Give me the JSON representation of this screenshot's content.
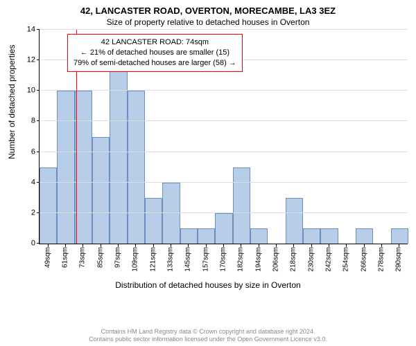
{
  "title_main": "42, LANCASTER ROAD, OVERTON, MORECAMBE, LA3 3EZ",
  "title_sub": "Size of property relative to detached houses in Overton",
  "y_axis_label": "Number of detached properties",
  "x_axis_label": "Distribution of detached houses by size in Overton",
  "footer_line1": "Contains HM Land Registry data © Crown copyright and database right 2024.",
  "footer_line2": "Contains public sector information licensed under the Open Government Licence v3.0.",
  "chart": {
    "type": "histogram",
    "ylim": [
      0,
      14
    ],
    "ytick_step": 2,
    "yticks": [
      0,
      2,
      4,
      6,
      8,
      10,
      12,
      14
    ],
    "grid_color": "#dddddd",
    "background_color": "#ffffff",
    "bar_fill": "#b7cde8",
    "bar_stroke": "#6a8fc0",
    "ref_line_color": "#ff0000",
    "info_border_color": "#ff0000",
    "label_fontsize": 12,
    "tick_fontsize": 11,
    "bin_width_sqm": 12,
    "x_start_sqm": 49,
    "x_tick_labels": [
      "49sqm",
      "61sqm",
      "73sqm",
      "85sqm",
      "97sqm",
      "109sqm",
      "121sqm",
      "133sqm",
      "145sqm",
      "157sqm",
      "170sqm",
      "182sqm",
      "194sqm",
      "206sqm",
      "218sqm",
      "230sqm",
      "242sqm",
      "254sqm",
      "266sqm",
      "278sqm",
      "290sqm"
    ],
    "values": [
      5,
      10,
      10,
      7,
      12,
      10,
      3,
      4,
      1,
      1,
      2,
      5,
      1,
      0,
      3,
      1,
      1,
      0,
      1,
      0,
      1
    ],
    "ref_value_sqm": 74,
    "info_box": {
      "line1": "42 LANCASTER ROAD: 74sqm",
      "line2": "← 21% of detached houses are smaller (15)",
      "line3": "79% of semi-detached houses are larger (58) →"
    }
  }
}
